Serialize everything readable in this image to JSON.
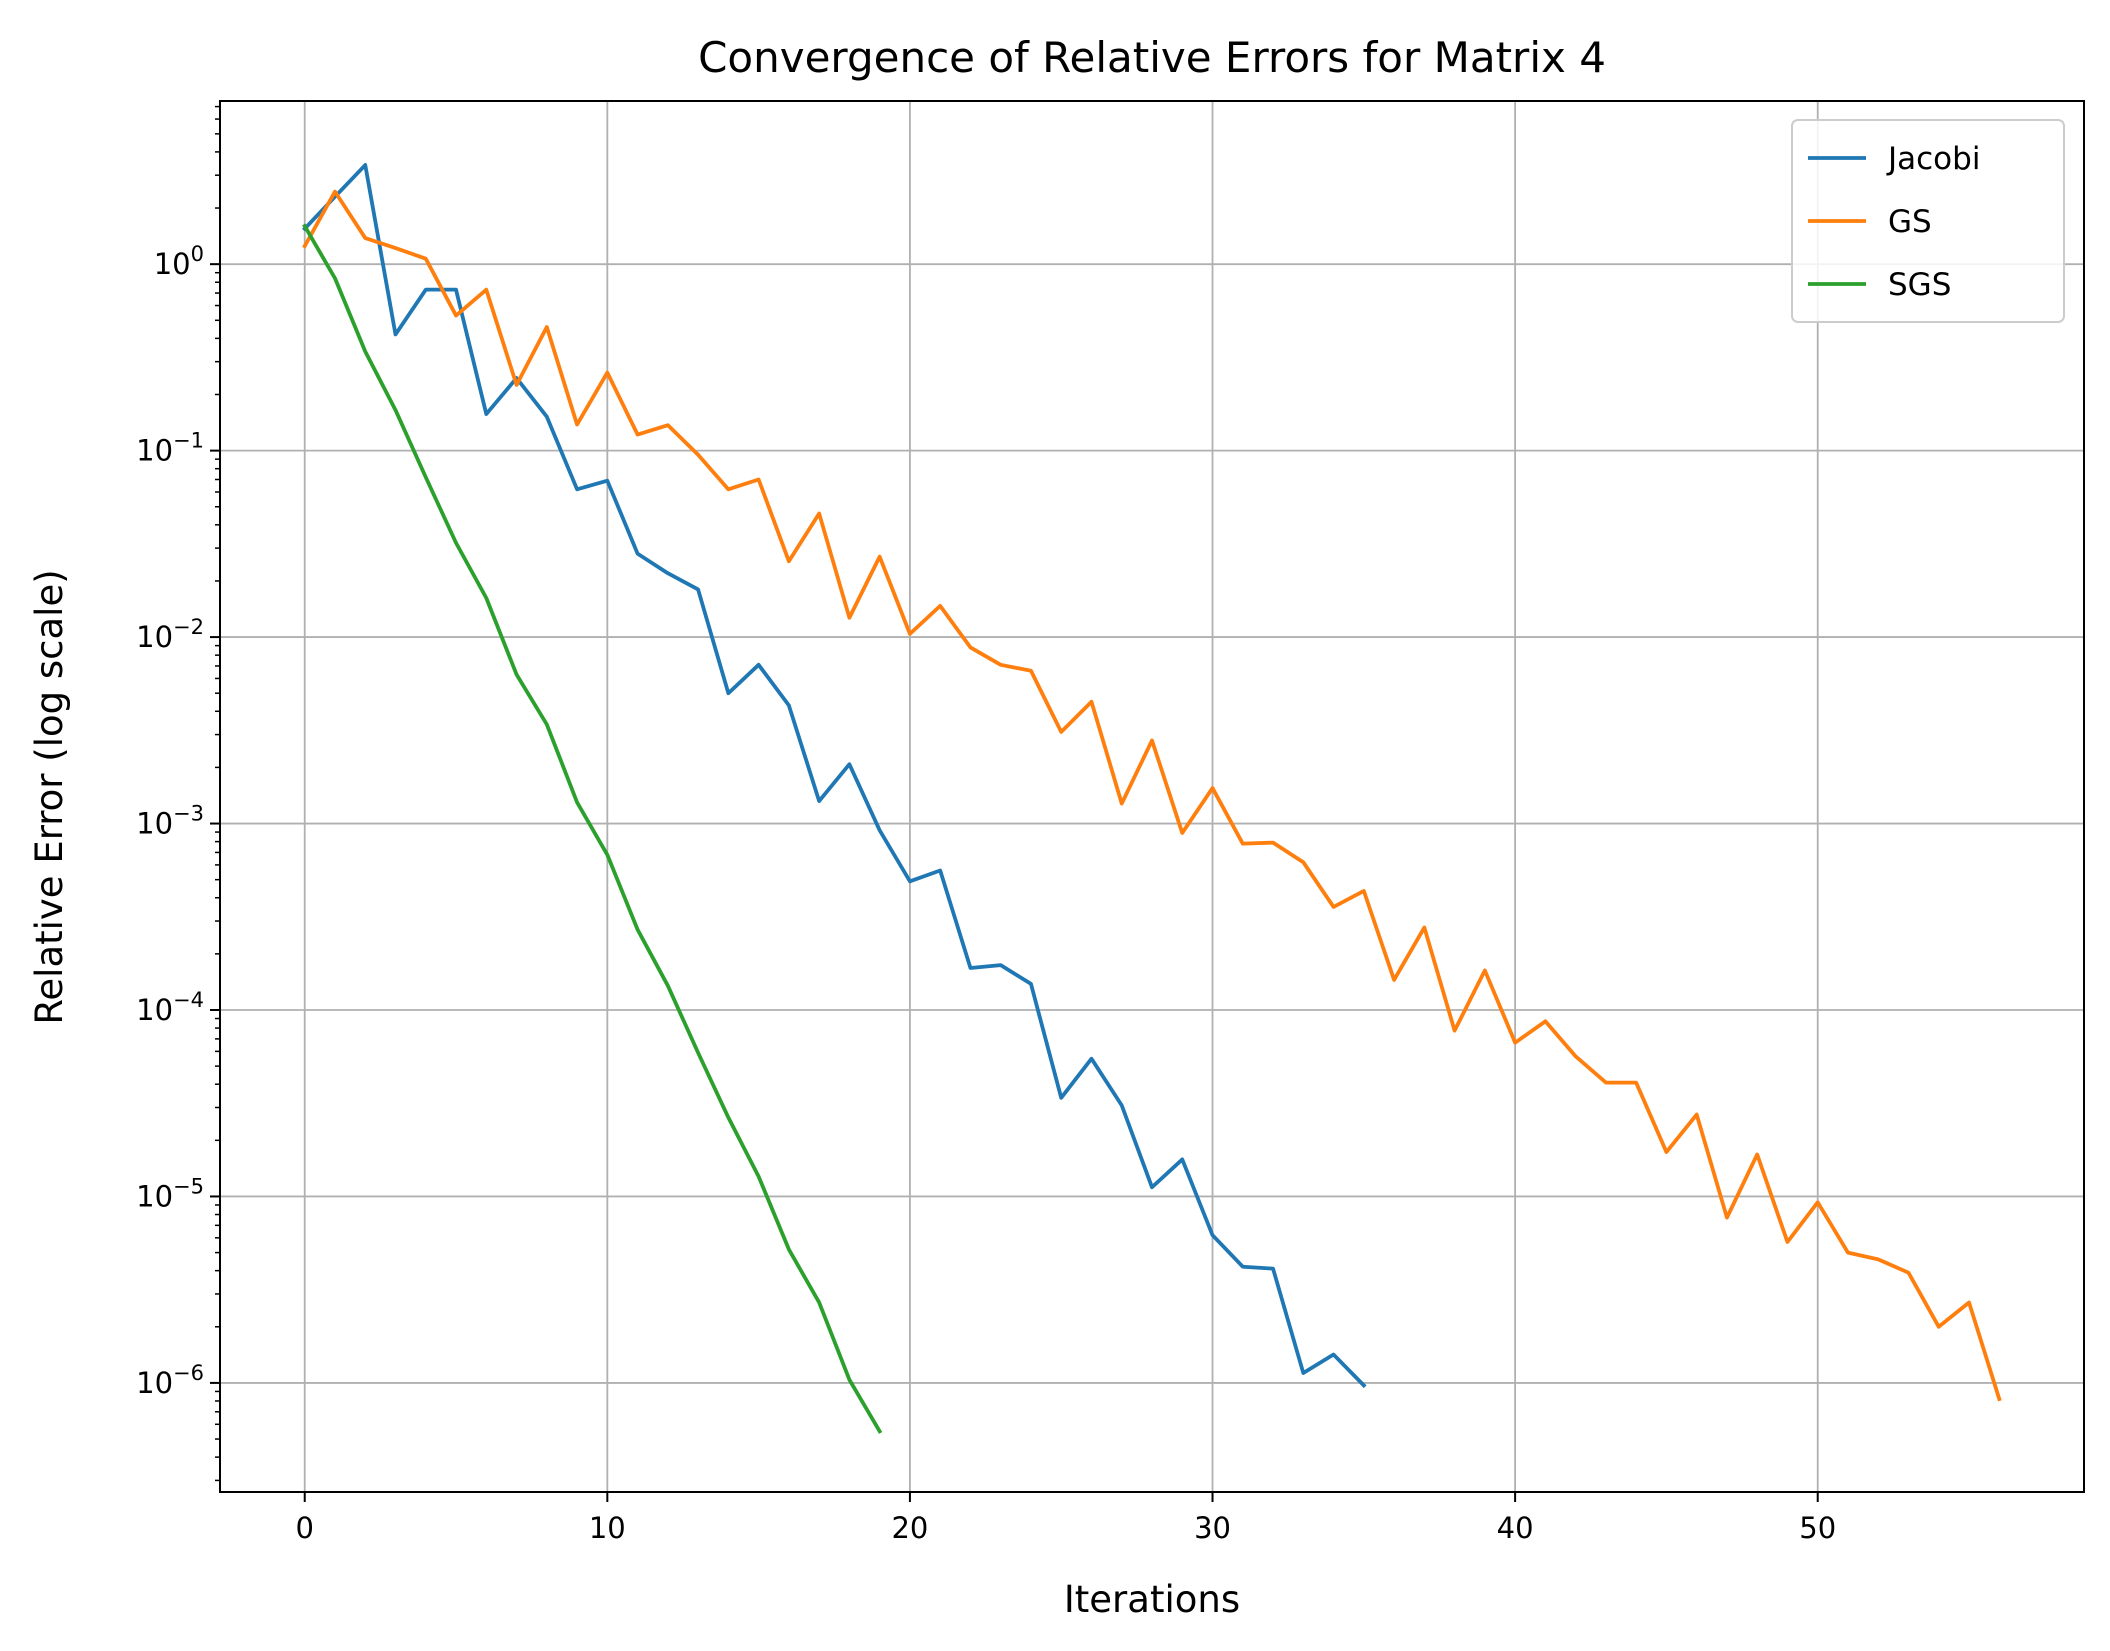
{
  "chart_data": {
    "type": "line",
    "title": "Convergence of Relative Errors for Matrix 4",
    "xlabel": "Iterations",
    "ylabel": "Relative Error (log scale)",
    "xlim": [
      -2.8,
      58.8
    ],
    "ylim": [
      2.6e-07,
      7.5
    ],
    "yscale": "log",
    "grid": true,
    "legend_position": "upper right",
    "xticks": [
      0,
      10,
      20,
      30,
      40,
      50
    ],
    "yticks": [
      {
        "value": 1,
        "base": "10",
        "exp": "0"
      },
      {
        "value": 0.1,
        "base": "10",
        "exp": "−1"
      },
      {
        "value": 0.01,
        "base": "10",
        "exp": "−2"
      },
      {
        "value": 0.001,
        "base": "10",
        "exp": "−3"
      },
      {
        "value": 0.0001,
        "base": "10",
        "exp": "−4"
      },
      {
        "value": 1e-05,
        "base": "10",
        "exp": "−5"
      },
      {
        "value": 1e-06,
        "base": "10",
        "exp": "−6"
      }
    ],
    "series": [
      {
        "name": "Jacobi",
        "color": "#1f77b4",
        "values": [
          1.55,
          2.3,
          3.4,
          0.42,
          0.73,
          0.73,
          0.157,
          0.245,
          0.152,
          0.062,
          0.069,
          0.028,
          0.022,
          0.018,
          0.005,
          0.0071,
          0.0043,
          0.00132,
          0.00208,
          0.00092,
          0.00049,
          0.00056,
          0.000168,
          0.000174,
          0.000138,
          3.38e-05,
          5.48e-05,
          3.08e-05,
          1.12e-05,
          1.58e-05,
          6.2e-06,
          4.2e-06,
          4.1e-06,
          1.13e-06,
          1.42e-06,
          9.7e-07
        ]
      },
      {
        "name": "GS",
        "color": "#ff7f0e",
        "values": [
          1.25,
          2.45,
          1.38,
          1.22,
          1.07,
          0.53,
          0.73,
          0.225,
          0.46,
          0.138,
          0.262,
          0.122,
          0.137,
          0.095,
          0.062,
          0.07,
          0.0255,
          0.046,
          0.0127,
          0.027,
          0.0104,
          0.0147,
          0.0088,
          0.0071,
          0.0066,
          0.0031,
          0.0045,
          0.00128,
          0.00279,
          0.00089,
          0.00155,
          0.00078,
          0.00079,
          0.00062,
          0.000357,
          0.000435,
          0.000145,
          0.000277,
          7.75e-05,
          0.000163,
          6.68e-05,
          8.7e-05,
          5.64e-05,
          4.08e-05,
          4.08e-05,
          1.73e-05,
          2.75e-05,
          7.7e-06,
          1.68e-05,
          5.7e-06,
          9.3e-06,
          5e-06,
          4.6e-06,
          3.9e-06,
          2e-06,
          2.7e-06,
          8.2e-07
        ]
      },
      {
        "name": "SGS",
        "color": "#2ca02c",
        "values": [
          1.6,
          0.84,
          0.34,
          0.165,
          0.072,
          0.032,
          0.0162,
          0.0063,
          0.0034,
          0.0013,
          0.00068,
          0.00027,
          0.000135,
          5.9e-05,
          2.65e-05,
          1.28e-05,
          5.2e-06,
          2.7e-06,
          1.04e-06,
          5.5e-07
        ]
      }
    ]
  }
}
